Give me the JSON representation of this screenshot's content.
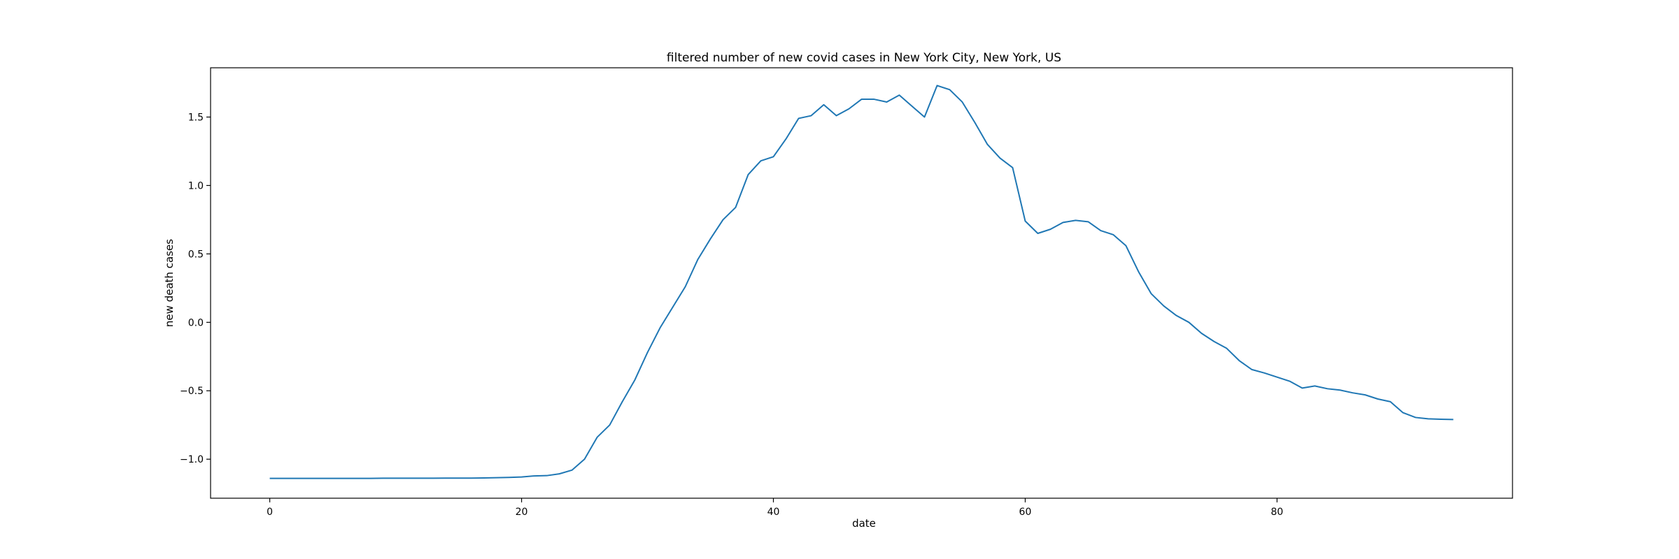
{
  "chart_data": {
    "type": "line",
    "title": "filtered number of new covid cases in New York City, New York, US",
    "xlabel": "date",
    "ylabel": "new death cases",
    "xlim": [
      -4.7,
      98.7
    ],
    "ylim": [
      -1.285,
      1.86
    ],
    "xticks": [
      0,
      20,
      40,
      60,
      80
    ],
    "yticks": [
      -1.0,
      -0.5,
      0.0,
      0.5,
      1.0,
      1.5
    ],
    "xtick_labels": [
      "0",
      "20",
      "40",
      "60",
      "80"
    ],
    "ytick_labels": [
      "−1.0",
      "−0.5",
      "0.0",
      "0.5",
      "1.0",
      "1.5"
    ],
    "grid": false,
    "legend": "none",
    "series": [
      {
        "color": "#1f77b4",
        "x": [
          0,
          1,
          2,
          3,
          4,
          5,
          6,
          7,
          8,
          9,
          10,
          11,
          12,
          13,
          14,
          15,
          16,
          17,
          18,
          19,
          20,
          21,
          22,
          23,
          24,
          25,
          26,
          27,
          28,
          29,
          30,
          31,
          32,
          33,
          34,
          35,
          36,
          37,
          38,
          39,
          40,
          41,
          42,
          43,
          44,
          45,
          46,
          47,
          48,
          49,
          50,
          51,
          52,
          53,
          54,
          55,
          56,
          57,
          58,
          59,
          60,
          61,
          62,
          63,
          64,
          65,
          66,
          67,
          68,
          69,
          70,
          71,
          72,
          73,
          74,
          75,
          76,
          77,
          78,
          79,
          80,
          81,
          82,
          83,
          84,
          85,
          86,
          87,
          88,
          89,
          90,
          91,
          92,
          93,
          94
        ],
        "y": [
          -1.14,
          -1.14,
          -1.14,
          -1.14,
          -1.14,
          -1.14,
          -1.14,
          -1.14,
          -1.14,
          -1.139,
          -1.139,
          -1.139,
          -1.139,
          -1.139,
          -1.138,
          -1.138,
          -1.138,
          -1.137,
          -1.135,
          -1.133,
          -1.13,
          -1.122,
          -1.12,
          -1.107,
          -1.08,
          -1.0,
          -0.84,
          -0.75,
          -0.58,
          -0.42,
          -0.22,
          -0.04,
          0.11,
          0.26,
          0.46,
          0.61,
          0.75,
          0.84,
          1.08,
          1.18,
          1.21,
          1.34,
          1.49,
          1.51,
          1.59,
          1.51,
          1.56,
          1.63,
          1.63,
          1.61,
          1.66,
          1.58,
          1.5,
          1.73,
          1.7,
          1.61,
          1.46,
          1.3,
          1.2,
          1.13,
          0.74,
          0.65,
          0.68,
          0.73,
          0.745,
          0.735,
          0.67,
          0.64,
          0.56,
          0.37,
          0.21,
          0.12,
          0.05,
          0.0,
          -0.08,
          -0.14,
          -0.19,
          -0.28,
          -0.345,
          -0.37,
          -0.4,
          -0.43,
          -0.48,
          -0.465,
          -0.485,
          -0.495,
          -0.515,
          -0.53,
          -0.56,
          -0.58,
          -0.66,
          -0.695,
          -0.705,
          -0.708,
          -0.71
        ]
      }
    ]
  }
}
